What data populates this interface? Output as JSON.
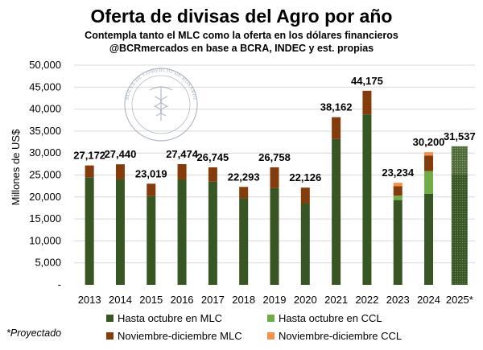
{
  "chart_data": {
    "type": "bar",
    "stacked": true,
    "title": "Oferta de divisas del Agro por año",
    "subtitle_lines": [
      "Contempla tanto el MLC como la oferta en los dólares financieros",
      "@BCRmercados  en base a BCRA,  INDEC y est. propias"
    ],
    "ylabel": "Millones de US$",
    "xlabel": "",
    "ylim": [
      0,
      50000
    ],
    "yticks": [
      0,
      5000,
      10000,
      15000,
      20000,
      25000,
      30000,
      35000,
      40000,
      45000,
      50000
    ],
    "ytick_labels": [
      "-",
      "5,000",
      "10,000",
      "15,000",
      "20,000",
      "25,000",
      "30,000",
      "35,000",
      "40,000",
      "45,000",
      "50,000"
    ],
    "grid": true,
    "legend_position": "bottom",
    "categories": [
      "2013",
      "2014",
      "2015",
      "2016",
      "2017",
      "2018",
      "2019",
      "2020",
      "2021",
      "2022",
      "2023",
      "2024",
      "2025*"
    ],
    "projected_index": 12,
    "series": [
      {
        "name": "Hasta octubre en MLC",
        "color": "#375623",
        "values": [
          24500,
          24000,
          20200,
          24000,
          23500,
          19700,
          22000,
          18500,
          33200,
          38800,
          19300,
          20700,
          25200
        ]
      },
      {
        "name": "Hasta octubre en CCL",
        "color": "#70ad47",
        "values": [
          0,
          0,
          0,
          0,
          0,
          0,
          0,
          0,
          0,
          0,
          1000,
          5200,
          0
        ]
      },
      {
        "name": "Noviembre-diciembre MLC",
        "color": "#843c0c",
        "values": [
          2672,
          3440,
          2819,
          3474,
          3245,
          2593,
          4758,
          3626,
          4962,
          5375,
          2134,
          3500,
          6337
        ]
      },
      {
        "name": "Noviembre-diciembre CCL",
        "color": "#f4914c",
        "values": [
          0,
          0,
          0,
          0,
          0,
          0,
          0,
          0,
          0,
          0,
          800,
          800,
          0
        ]
      }
    ],
    "totals": [
      27172,
      27440,
      23019,
      27474,
      26745,
      22293,
      26758,
      22126,
      38162,
      44175,
      23234,
      30200,
      31537
    ],
    "total_labels": [
      "27,172",
      "27,440",
      "23,019",
      "27,474",
      "26,745",
      "22,293",
      "26,758",
      "22,126",
      "38,162",
      "44,175",
      "23,234",
      "30,200",
      "31,537"
    ],
    "note": "*Proyectado",
    "watermark_text": "BOLSA DE COMERCIO DE ROSARIO"
  }
}
